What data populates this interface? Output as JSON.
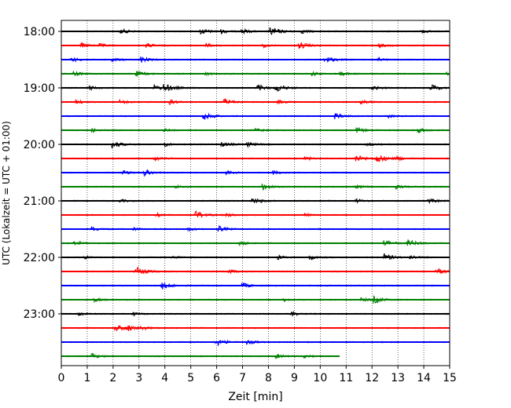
{
  "chart_data": {
    "type": "line",
    "title": "",
    "xlabel": "Zeit  [min]",
    "ylabel": "UTC (Lokalzeit = UTC + 01:00)",
    "xlim": [
      0,
      15
    ],
    "x_ticks": [
      "0",
      "1",
      "2",
      "3",
      "4",
      "5",
      "6",
      "7",
      "8",
      "9",
      "10",
      "11",
      "12",
      "13",
      "14",
      "15"
    ],
    "y_tick_labels": [
      "18:00",
      "19:00",
      "20:00",
      "21:00",
      "22:00",
      "23:00"
    ],
    "grid_x": true,
    "grid_y": false,
    "trace_colors": [
      "#000000",
      "#ff0000",
      "#0000ff",
      "#008000"
    ],
    "traces": [
      {
        "start": "18:00",
        "end_min": 15,
        "events": [
          [
            2.3,
            0.6
          ],
          [
            5.4,
            0.7
          ],
          [
            6.2,
            0.4
          ],
          [
            7.0,
            0.5
          ],
          [
            8.1,
            1.0
          ],
          [
            9.3,
            0.4
          ],
          [
            13.9,
            0.4
          ]
        ]
      },
      {
        "start": "18:15",
        "end_min": 15,
        "events": [
          [
            0.8,
            0.5
          ],
          [
            1.5,
            0.4
          ],
          [
            3.3,
            0.5
          ],
          [
            5.6,
            0.4
          ],
          [
            7.8,
            0.4
          ],
          [
            9.2,
            0.8
          ],
          [
            12.3,
            0.4
          ]
        ]
      },
      {
        "start": "18:30",
        "end_min": 15,
        "events": [
          [
            0.4,
            0.5
          ],
          [
            2.0,
            0.4
          ],
          [
            3.1,
            0.6
          ],
          [
            10.2,
            0.8
          ],
          [
            12.2,
            0.4
          ]
        ]
      },
      {
        "start": "18:45",
        "end_min": 15,
        "events": [
          [
            0.5,
            0.5
          ],
          [
            2.9,
            0.6
          ],
          [
            5.6,
            0.3
          ],
          [
            9.7,
            0.4
          ],
          [
            10.7,
            0.6
          ],
          [
            14.9,
            0.4
          ]
        ]
      },
      {
        "start": "19:00",
        "end_min": 15,
        "events": [
          [
            1.1,
            0.4
          ],
          [
            3.6,
            0.7
          ],
          [
            4.0,
            0.8
          ],
          [
            7.6,
            0.7
          ],
          [
            8.3,
            0.9
          ],
          [
            12.0,
            0.5
          ],
          [
            14.3,
            0.7
          ]
        ]
      },
      {
        "start": "19:15",
        "end_min": 15,
        "events": [
          [
            0.6,
            0.4
          ],
          [
            2.3,
            0.4
          ],
          [
            4.2,
            0.5
          ],
          [
            6.3,
            0.7
          ],
          [
            8.4,
            0.4
          ],
          [
            11.6,
            0.4
          ]
        ]
      },
      {
        "start": "19:30",
        "end_min": 15,
        "events": [
          [
            5.5,
            0.9
          ],
          [
            10.6,
            0.6
          ],
          [
            12.6,
            0.4
          ]
        ]
      },
      {
        "start": "19:45",
        "end_min": 15,
        "events": [
          [
            1.2,
            0.4
          ],
          [
            4.0,
            0.3
          ],
          [
            7.5,
            0.4
          ],
          [
            11.4,
            0.6
          ],
          [
            13.8,
            0.6
          ]
        ]
      },
      {
        "start": "20:00",
        "end_min": 15,
        "events": [
          [
            2.0,
            0.8
          ],
          [
            4.0,
            0.4
          ],
          [
            6.2,
            0.6
          ],
          [
            7.2,
            0.5
          ],
          [
            11.8,
            0.4
          ]
        ]
      },
      {
        "start": "20:15",
        "end_min": 15,
        "events": [
          [
            3.6,
            0.5
          ],
          [
            9.4,
            0.4
          ],
          [
            11.4,
            0.8
          ],
          [
            12.2,
            1.0
          ],
          [
            13.0,
            0.4
          ]
        ]
      },
      {
        "start": "20:30",
        "end_min": 15,
        "events": [
          [
            2.4,
            0.5
          ],
          [
            3.2,
            0.7
          ],
          [
            6.4,
            0.5
          ],
          [
            8.2,
            0.4
          ]
        ]
      },
      {
        "start": "20:45",
        "end_min": 15,
        "events": [
          [
            4.4,
            0.3
          ],
          [
            7.8,
            0.7
          ],
          [
            11.4,
            0.4
          ],
          [
            12.9,
            0.5
          ]
        ]
      },
      {
        "start": "21:00",
        "end_min": 15,
        "events": [
          [
            2.3,
            0.3
          ],
          [
            7.4,
            0.7
          ],
          [
            11.4,
            0.4
          ],
          [
            14.2,
            0.5
          ]
        ]
      },
      {
        "start": "21:15",
        "end_min": 15,
        "events": [
          [
            3.7,
            0.4
          ],
          [
            5.2,
            0.9
          ],
          [
            6.4,
            0.4
          ],
          [
            9.4,
            0.3
          ]
        ]
      },
      {
        "start": "21:30",
        "end_min": 15,
        "events": [
          [
            1.2,
            0.5
          ],
          [
            2.8,
            0.3
          ],
          [
            4.9,
            0.4
          ],
          [
            6.1,
            0.6
          ]
        ]
      },
      {
        "start": "21:45",
        "end_min": 15,
        "events": [
          [
            0.5,
            0.5
          ],
          [
            6.9,
            0.4
          ],
          [
            12.5,
            0.7
          ],
          [
            13.4,
            0.8
          ]
        ]
      },
      {
        "start": "22:00",
        "end_min": 15,
        "events": [
          [
            0.9,
            0.3
          ],
          [
            4.3,
            0.3
          ],
          [
            8.4,
            0.4
          ],
          [
            9.6,
            0.5
          ],
          [
            12.5,
            0.8
          ],
          [
            13.5,
            0.4
          ]
        ]
      },
      {
        "start": "22:15",
        "end_min": 15,
        "events": [
          [
            2.9,
            1.0
          ],
          [
            6.5,
            0.4
          ],
          [
            14.5,
            0.7
          ]
        ]
      },
      {
        "start": "22:30",
        "end_min": 15,
        "events": [
          [
            3.9,
            0.8
          ],
          [
            7.0,
            0.6
          ]
        ]
      },
      {
        "start": "22:45",
        "end_min": 15,
        "events": [
          [
            1.3,
            0.4
          ],
          [
            8.6,
            0.3
          ],
          [
            11.6,
            0.4
          ],
          [
            12.1,
            0.7
          ]
        ]
      },
      {
        "start": "23:00",
        "end_min": 15,
        "events": [
          [
            0.7,
            0.3
          ],
          [
            2.8,
            0.3
          ],
          [
            8.9,
            0.5
          ]
        ]
      },
      {
        "start": "23:15",
        "end_min": 15,
        "events": [
          [
            2.1,
            0.8
          ],
          [
            2.5,
            0.7
          ],
          [
            3.1,
            0.4
          ]
        ]
      },
      {
        "start": "23:30",
        "end_min": 15,
        "events": [
          [
            6.0,
            0.8
          ],
          [
            7.2,
            0.5
          ]
        ]
      },
      {
        "start": "23:45",
        "end_min": 10.75,
        "events": [
          [
            1.2,
            0.5
          ],
          [
            8.3,
            0.5
          ],
          [
            9.4,
            0.3
          ]
        ]
      }
    ]
  }
}
